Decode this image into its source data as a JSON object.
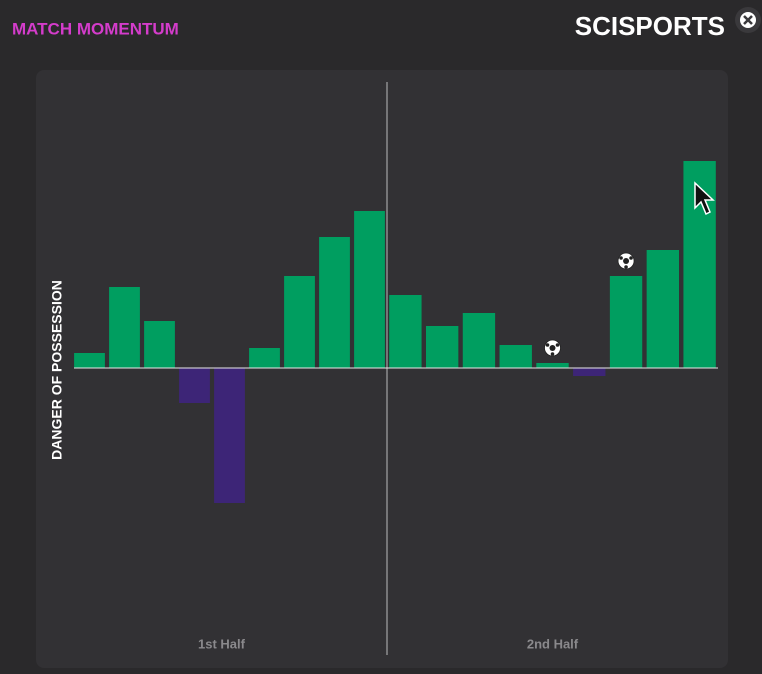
{
  "header": {
    "title": "MATCH MOMENTUM",
    "logo": "SCISPORTS"
  },
  "chart_data": {
    "type": "bar",
    "y_label": "DANGER OF POSSESSION",
    "sections": [
      "1st Half",
      "2nd Half"
    ],
    "categories": [
      null,
      null,
      null,
      null,
      null,
      null,
      null,
      null,
      null,
      null,
      null,
      null,
      null,
      null,
      null,
      null,
      null,
      null
    ],
    "values": [
      15,
      81,
      47,
      -35,
      -135,
      20,
      92,
      131,
      157,
      73,
      42,
      55,
      23,
      5,
      -8,
      92,
      118,
      207
    ],
    "goals": [
      13,
      15
    ],
    "colors": {
      "positive": "#009e60",
      "negative": "#3d2577"
    },
    "ylim": [
      -252,
      268
    ]
  }
}
